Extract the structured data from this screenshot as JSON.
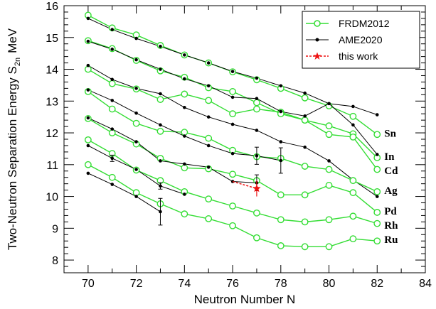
{
  "chart_data": {
    "type": "line",
    "xlabel": "Neutron Number N",
    "ylabel_main": "Two-Neutron Separation Energy S",
    "ylabel_sub": "2n",
    "ylabel_unit": "MeV",
    "xlim": [
      69,
      84
    ],
    "ylim": [
      7.6,
      16
    ],
    "xticks": [
      70,
      72,
      74,
      76,
      78,
      80,
      82,
      84
    ],
    "yticks": [
      8,
      9,
      10,
      11,
      12,
      13,
      14,
      15,
      16
    ],
    "legend_position": "top-right",
    "colors": {
      "frdm": "#33dd33",
      "ame": "#000000",
      "this_work": "#ee1111"
    },
    "legend": [
      {
        "key": "frdm",
        "label": "FRDM2012"
      },
      {
        "key": "ame",
        "label": "AME2020"
      },
      {
        "key": "this_work",
        "label": "this work"
      }
    ],
    "series": [
      {
        "element": "Sn",
        "frdm": [
          [
            70,
            15.7
          ],
          [
            71,
            15.3
          ],
          [
            72,
            15.08
          ],
          [
            73,
            14.75
          ],
          [
            74,
            14.45
          ],
          [
            75,
            14.2
          ],
          [
            76,
            13.92
          ],
          [
            77,
            13.67
          ],
          [
            78,
            13.4
          ],
          [
            79,
            13.1
          ],
          [
            80,
            12.85
          ],
          [
            81,
            12.52
          ],
          [
            82,
            11.95
          ]
        ],
        "ame": [
          [
            70,
            15.6
          ],
          [
            71,
            15.25
          ],
          [
            72,
            14.97
          ],
          [
            73,
            14.72
          ],
          [
            74,
            14.45
          ],
          [
            75,
            14.2
          ],
          [
            76,
            13.93
          ],
          [
            77,
            13.72
          ],
          [
            78,
            13.48
          ],
          [
            79,
            13.25
          ],
          [
            80,
            12.92
          ],
          [
            81,
            12.83
          ],
          [
            82,
            12.57
          ]
        ]
      },
      {
        "element": "In",
        "frdm": [
          [
            70,
            14.0
          ],
          [
            71,
            13.55
          ],
          [
            72,
            13.38
          ],
          [
            73,
            13.05
          ],
          [
            74,
            13.22
          ],
          [
            75,
            13.02
          ],
          [
            76,
            12.6
          ],
          [
            77,
            12.75
          ],
          [
            78,
            12.65
          ],
          [
            79,
            12.4
          ],
          [
            80,
            12.22
          ],
          [
            81,
            11.97
          ],
          [
            82,
            11.22
          ]
        ],
        "ame": [
          [
            70,
            14.12
          ],
          [
            71,
            13.68
          ],
          [
            72,
            13.4
          ],
          [
            73,
            13.23
          ],
          [
            74,
            12.8
          ],
          [
            75,
            12.5
          ],
          [
            76,
            12.27
          ],
          [
            77,
            12.08
          ],
          [
            78,
            11.72
          ],
          [
            79,
            11.55
          ],
          [
            80,
            11.12
          ],
          [
            81,
            10.52
          ],
          [
            82,
            10.0
          ]
        ]
      },
      {
        "element": "Cd",
        "frdm": [
          [
            70,
            14.9
          ],
          [
            71,
            14.65
          ],
          [
            72,
            14.28
          ],
          [
            73,
            13.95
          ],
          [
            74,
            13.75
          ],
          [
            75,
            13.42
          ],
          [
            76,
            13.3
          ],
          [
            77,
            12.95
          ],
          [
            78,
            12.6
          ],
          [
            79,
            12.4
          ],
          [
            80,
            11.95
          ],
          [
            81,
            11.87
          ],
          [
            82,
            10.85
          ]
        ],
        "ame": [
          [
            70,
            14.88
          ],
          [
            71,
            14.63
          ],
          [
            72,
            14.3
          ],
          [
            73,
            14.0
          ],
          [
            74,
            13.7
          ],
          [
            75,
            13.48
          ],
          [
            76,
            13.12
          ],
          [
            77,
            13.08
          ],
          [
            78,
            12.67
          ],
          [
            79,
            12.53
          ],
          [
            80,
            12.92
          ],
          [
            81,
            12.25
          ],
          [
            82,
            11.32
          ]
        ]
      },
      {
        "element": "Ag",
        "frdm": [
          [
            70,
            13.3
          ],
          [
            71,
            12.75
          ],
          [
            72,
            12.3
          ],
          [
            73,
            12.05
          ],
          [
            74,
            12.02
          ],
          [
            75,
            11.83
          ],
          [
            76,
            11.45
          ],
          [
            77,
            11.25
          ],
          [
            78,
            11.2
          ],
          [
            79,
            10.95
          ],
          [
            80,
            10.85
          ],
          [
            81,
            10.5
          ],
          [
            82,
            10.15
          ]
        ],
        "ame": [
          [
            70,
            13.35
          ],
          [
            71,
            13.02
          ],
          [
            72,
            12.62
          ],
          [
            73,
            12.25
          ],
          [
            74,
            11.9
          ],
          [
            75,
            11.6
          ],
          [
            76,
            11.35
          ],
          [
            77,
            11.28
          ],
          [
            78,
            11.13
          ]
        ]
      },
      {
        "element": "Pd",
        "frdm": [
          [
            70,
            12.45
          ],
          [
            71,
            12.0
          ],
          [
            72,
            11.65
          ],
          [
            73,
            11.2
          ],
          [
            74,
            10.9
          ],
          [
            75,
            10.87
          ],
          [
            76,
            10.7
          ],
          [
            77,
            10.5
          ],
          [
            78,
            10.05
          ],
          [
            79,
            10.05
          ],
          [
            80,
            10.35
          ],
          [
            81,
            10.12
          ],
          [
            82,
            9.5
          ]
        ],
        "ame": [
          [
            70,
            12.47
          ],
          [
            71,
            12.12
          ],
          [
            72,
            11.72
          ],
          [
            73,
            11.12
          ],
          [
            74,
            11.02
          ],
          [
            75,
            10.92
          ],
          [
            76,
            10.47
          ],
          [
            77,
            10.43
          ]
        ]
      },
      {
        "element": "Rh",
        "frdm": [
          [
            70,
            11.78
          ],
          [
            71,
            11.35
          ],
          [
            72,
            10.83
          ],
          [
            73,
            10.5
          ],
          [
            74,
            10.15
          ],
          [
            75,
            9.92
          ],
          [
            76,
            9.7
          ],
          [
            77,
            9.48
          ],
          [
            78,
            9.27
          ],
          [
            79,
            9.2
          ],
          [
            80,
            9.27
          ],
          [
            81,
            9.38
          ],
          [
            82,
            9.15
          ]
        ],
        "ame": [
          [
            70,
            11.6
          ],
          [
            71,
            11.2
          ],
          [
            72,
            10.85
          ],
          [
            73,
            10.33
          ],
          [
            74,
            10.07
          ]
        ]
      },
      {
        "element": "Ru",
        "frdm": [
          [
            70,
            11.0
          ],
          [
            71,
            10.6
          ],
          [
            72,
            10.12
          ],
          [
            73,
            9.77
          ],
          [
            74,
            9.45
          ],
          [
            75,
            9.3
          ],
          [
            76,
            9.08
          ],
          [
            77,
            8.7
          ],
          [
            78,
            8.45
          ],
          [
            79,
            8.42
          ],
          [
            80,
            8.42
          ],
          [
            81,
            8.67
          ],
          [
            82,
            8.6
          ]
        ],
        "ame": [
          [
            70,
            10.73
          ],
          [
            71,
            10.38
          ],
          [
            72,
            10.0
          ],
          [
            73,
            9.52
          ]
        ]
      }
    ],
    "error_bars": [
      {
        "x": 71,
        "y": 11.2,
        "err": 0.1
      },
      {
        "x": 73,
        "y": 10.33,
        "err": 0.1
      },
      {
        "x": 73,
        "y": 9.52,
        "err": 0.42
      },
      {
        "x": 77,
        "y": 11.28,
        "err": 0.27
      },
      {
        "x": 77,
        "y": 10.43,
        "err": 0.25
      },
      {
        "x": 78,
        "y": 11.13,
        "err": 0.4
      }
    ],
    "this_work": {
      "points": [
        [
          76,
          10.47
        ],
        [
          77,
          10.25
        ]
      ],
      "err": 0.25
    }
  }
}
